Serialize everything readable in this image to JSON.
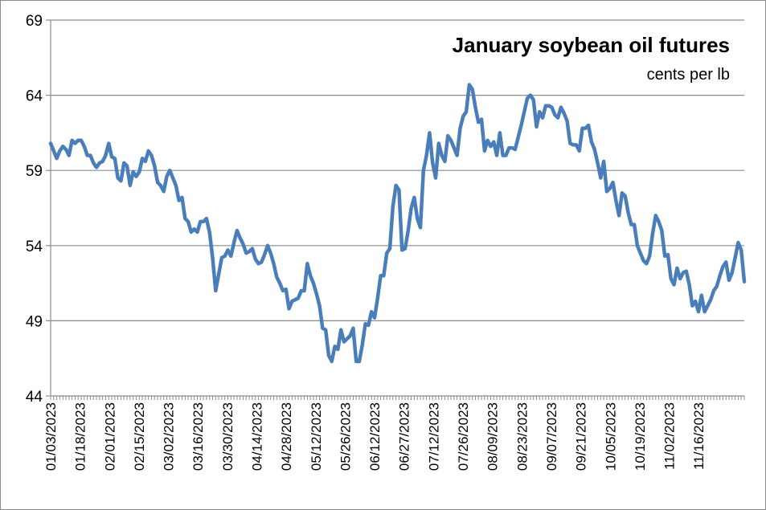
{
  "chart_data": {
    "type": "line",
    "title": "January soybean oil futures",
    "subtitle": "cents per lb",
    "xlabel": "",
    "ylabel": "",
    "ylim": [
      44,
      69
    ],
    "y_ticks": [
      44,
      49,
      54,
      59,
      64,
      69
    ],
    "x_tick_labels": [
      "01/03/2023",
      "01/18/2023",
      "02/01/2023",
      "02/15/2023",
      "03/02/2023",
      "03/16/2023",
      "03/30/2023",
      "04/14/2023",
      "04/28/2023",
      "05/12/2023",
      "05/26/2023",
      "06/12/2023",
      "06/27/2023",
      "07/12/2023",
      "07/26/2023",
      "08/09/2023",
      "08/23/2023",
      "09/07/2023",
      "09/21/2023",
      "10/05/2023",
      "10/19/2023",
      "11/02/2023",
      "11/16/2023"
    ],
    "grid": true,
    "line_color": "#4a7ebb",
    "series": [
      {
        "values": [
          60.8,
          60.3,
          59.8,
          60.3,
          60.6,
          60.4,
          60.0,
          61.0,
          60.8,
          61.0,
          61.0,
          60.6,
          60.0,
          60.0,
          59.5,
          59.2,
          59.5,
          59.6,
          60.0,
          60.8,
          59.9,
          59.8,
          58.5,
          58.3,
          59.5,
          59.3,
          58.0,
          58.9,
          58.6,
          58.9,
          59.8,
          59.6,
          60.3,
          60.0,
          59.3,
          58.2,
          58.0,
          57.6,
          58.6,
          59.0,
          58.5,
          58.0,
          57.0,
          57.2,
          55.8,
          55.6,
          54.9,
          55.1,
          54.9,
          55.6,
          55.6,
          55.8,
          54.9,
          53.2,
          51.0,
          52.1,
          53.2,
          53.3,
          53.7,
          53.3,
          54.2,
          55.0,
          54.5,
          54.1,
          53.5,
          53.6,
          53.8,
          53.1,
          52.8,
          52.9,
          53.4,
          54.0,
          53.5,
          52.8,
          51.9,
          51.5,
          51.0,
          51.1,
          49.8,
          50.3,
          50.4,
          50.5,
          51.0,
          51.0,
          52.8,
          52.0,
          51.5,
          50.8,
          50.0,
          48.5,
          48.4,
          46.7,
          46.3,
          47.3,
          47.1,
          48.4,
          47.6,
          47.8,
          48.0,
          48.5,
          46.3,
          46.3,
          47.4,
          48.8,
          48.7,
          49.6,
          49.2,
          50.5,
          52.0,
          52.0,
          53.5,
          53.8,
          56.6,
          58.0,
          57.7,
          53.7,
          53.8,
          55.0,
          56.5,
          57.2,
          55.8,
          55.2,
          59.0,
          60.0,
          61.5,
          59.5,
          58.5,
          60.8,
          60.0,
          59.6,
          61.3,
          61.0,
          60.5,
          60.0,
          61.8,
          62.6,
          62.9,
          64.7,
          64.4,
          63.2,
          62.2,
          62.4,
          60.3,
          61.0,
          60.6,
          60.9,
          60.0,
          61.5,
          60.0,
          60.0,
          60.5,
          60.5,
          60.4,
          61.2,
          62.0,
          62.9,
          63.8,
          64.0,
          63.7,
          61.9,
          62.9,
          62.5,
          63.3,
          63.3,
          63.2,
          62.7,
          62.5,
          63.2,
          62.8,
          62.3,
          60.8,
          60.7,
          60.7,
          60.3,
          61.8,
          61.8,
          62.0,
          60.9,
          60.4,
          59.5,
          58.5,
          59.6,
          57.6,
          57.8,
          58.2,
          57.0,
          56.0,
          57.5,
          57.3,
          56.2,
          55.4,
          55.4,
          54.0,
          53.5,
          53.0,
          52.8,
          53.3,
          54.8,
          56.0,
          55.6,
          55.0,
          53.3,
          53.4,
          51.8,
          51.4,
          52.5,
          51.8,
          52.2,
          52.3,
          51.4,
          50.0,
          50.3,
          49.6,
          50.7,
          49.6,
          50.0,
          50.4,
          51.0,
          51.3,
          52.0,
          52.6,
          52.9,
          51.7,
          52.2,
          53.2,
          54.2,
          53.7,
          51.6
        ]
      }
    ]
  }
}
